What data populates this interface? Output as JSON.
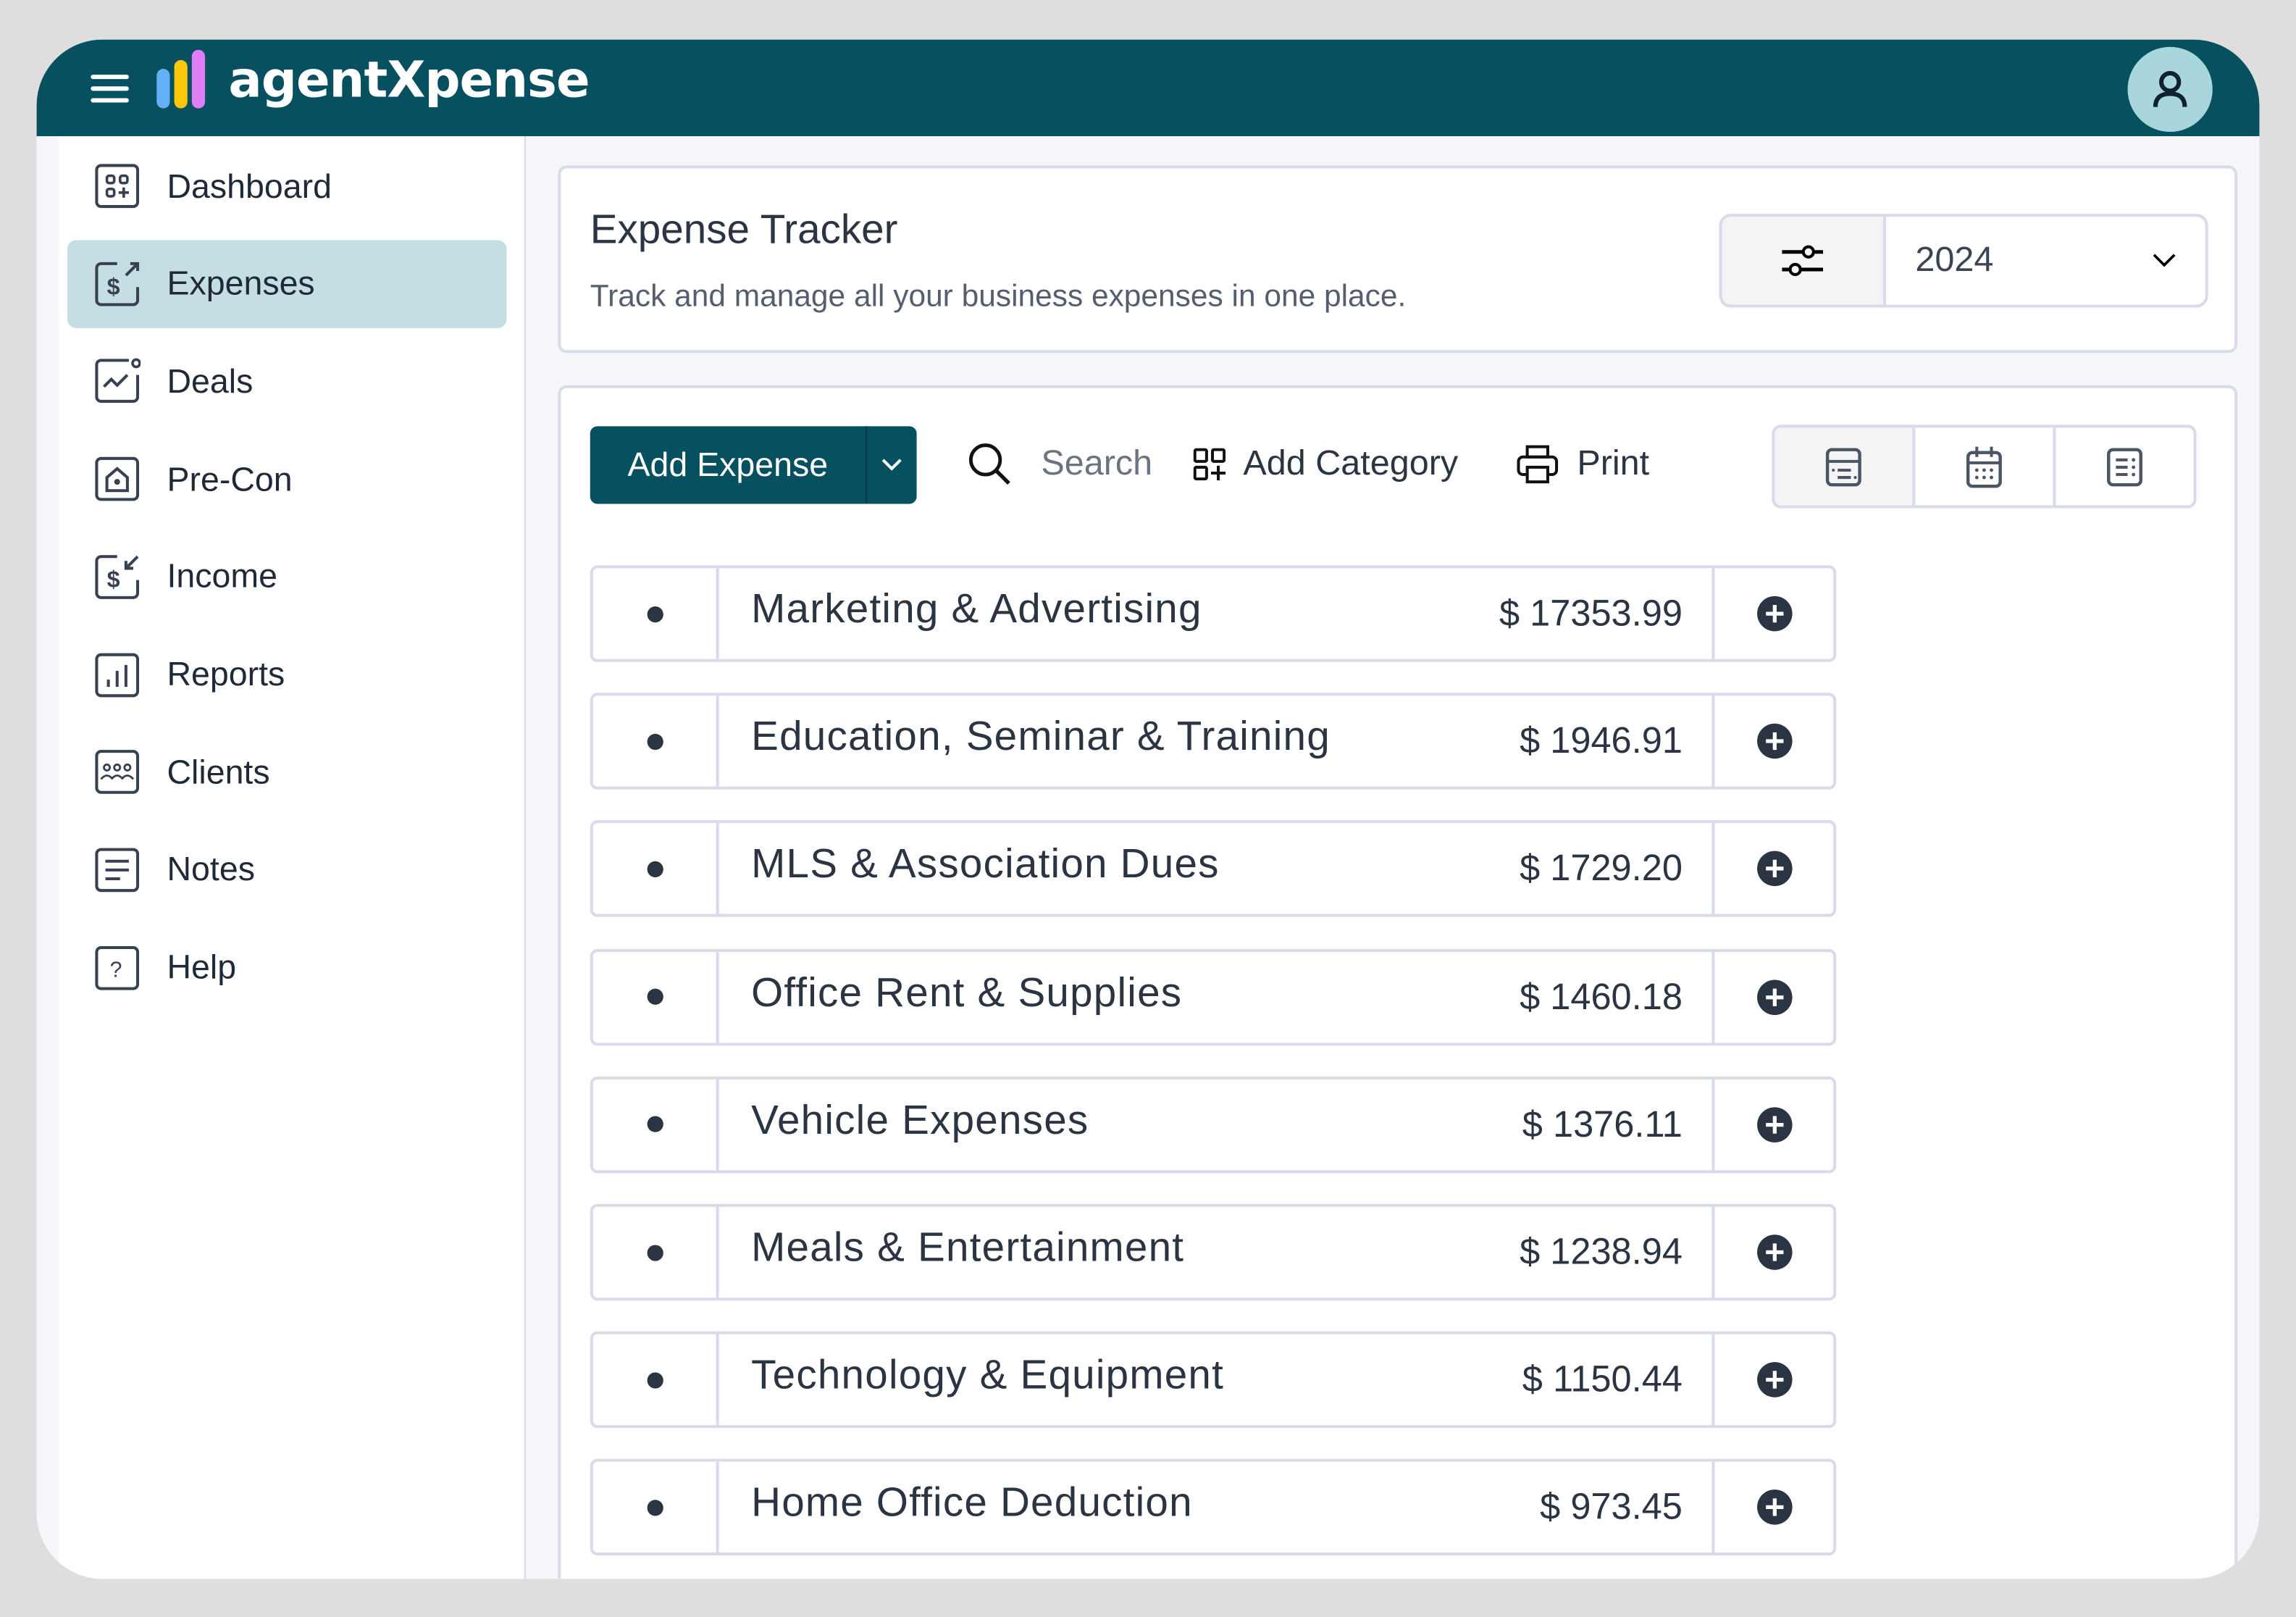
{
  "app": {
    "brand": "agentXpense",
    "accent": "#06505f",
    "logo_colors": [
      "#64b0f6",
      "#fbc70b",
      "#df7ff7"
    ]
  },
  "sidebar": {
    "items": [
      {
        "label": "Dashboard",
        "icon": "dashboard-grid-icon"
      },
      {
        "label": "Expenses",
        "icon": "dollar-arrow-out-icon",
        "active": true
      },
      {
        "label": "Deals",
        "icon": "chart-line-icon"
      },
      {
        "label": "Pre-Con",
        "icon": "home-icon"
      },
      {
        "label": "Income",
        "icon": "dollar-arrow-in-icon"
      },
      {
        "label": "Reports",
        "icon": "bar-chart-icon"
      },
      {
        "label": "Clients",
        "icon": "users-icon"
      },
      {
        "label": "Notes",
        "icon": "notes-icon"
      },
      {
        "label": "Help",
        "icon": "help-icon"
      }
    ]
  },
  "page": {
    "title": "Expense Tracker",
    "subtitle": "Track and manage all your business expenses in one place.",
    "year": "2024"
  },
  "toolbar": {
    "add_expense": "Add Expense",
    "search": "Search",
    "add_category": "Add Category",
    "print": "Print",
    "views": [
      "card-view-icon",
      "calendar-view-icon",
      "list-view-icon"
    ],
    "active_view": 0
  },
  "categories": [
    {
      "name": "Marketing & Advertising",
      "amount": "$ 17353.99"
    },
    {
      "name": "Education, Seminar & Training",
      "amount": "$ 1946.91"
    },
    {
      "name": "MLS & Association Dues",
      "amount": "$ 1729.20"
    },
    {
      "name": "Office Rent & Supplies",
      "amount": "$ 1460.18"
    },
    {
      "name": "Vehicle Expenses",
      "amount": "$ 1376.11"
    },
    {
      "name": "Meals & Entertainment",
      "amount": "$ 1238.94"
    },
    {
      "name": "Technology & Equipment",
      "amount": "$ 1150.44"
    },
    {
      "name": "Home Office Deduction",
      "amount": "$ 973.45"
    }
  ]
}
